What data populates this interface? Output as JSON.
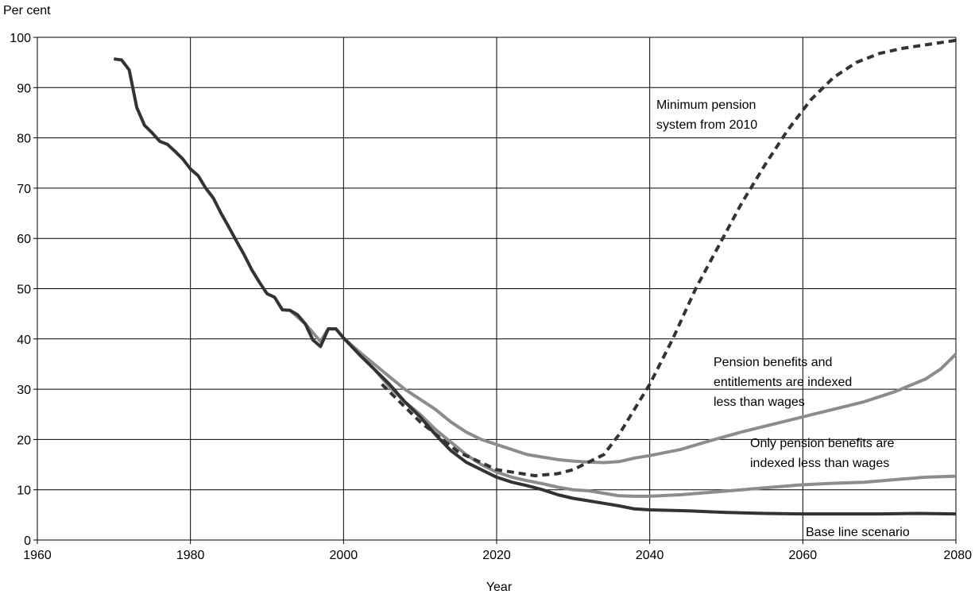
{
  "chart_data": {
    "type": "line",
    "title": "",
    "ylabel": "Per cent",
    "xlabel": "Year",
    "xlim": [
      1960,
      2080
    ],
    "ylim": [
      0,
      100
    ],
    "xticks": [
      1960,
      1980,
      2000,
      2020,
      2040,
      2060,
      2080
    ],
    "yticks": [
      0,
      10,
      20,
      30,
      40,
      50,
      60,
      70,
      80,
      90,
      100
    ],
    "grid": true,
    "colors": {
      "baseline": "#333333",
      "grey": "#8c8c8c",
      "dash": "#333333"
    },
    "series": [
      {
        "name": "Base line scenario",
        "style": "solid-dark",
        "x": [
          1970,
          1971,
          1972,
          1973,
          1974,
          1975,
          1976,
          1977,
          1978,
          1979,
          1980,
          1981,
          1982,
          1983,
          1984,
          1985,
          1986,
          1987,
          1988,
          1989,
          1990,
          1991,
          1992,
          1993,
          1994,
          1995,
          1996,
          1997,
          1998,
          1999,
          2000,
          2002,
          2004,
          2006,
          2008,
          2010,
          2012,
          2014,
          2016,
          2018,
          2020,
          2022,
          2024,
          2026,
          2028,
          2030,
          2032,
          2034,
          2036,
          2038,
          2040,
          2045,
          2050,
          2055,
          2060,
          2065,
          2070,
          2075,
          2080
        ],
        "y": [
          95.7,
          95.5,
          93.5,
          86,
          82.5,
          81,
          79.3,
          78.7,
          77.3,
          75.8,
          73.8,
          72.5,
          70,
          68,
          65,
          62.3,
          59.5,
          56.8,
          53.8,
          51.3,
          49,
          48.3,
          45.8,
          45.7,
          44.8,
          43,
          39.8,
          38.5,
          42,
          42,
          40.2,
          37,
          34,
          31,
          27.5,
          24.5,
          21,
          17.8,
          15.5,
          14,
          12.5,
          11.5,
          10.8,
          10,
          9,
          8.3,
          7.8,
          7.3,
          6.8,
          6.2,
          6,
          5.8,
          5.5,
          5.3,
          5.2,
          5.2,
          5.2,
          5.3,
          5.2
        ]
      },
      {
        "name": "Minimum pension system from 2010",
        "style": "dashed-dark",
        "x": [
          2005,
          2010,
          2015,
          2020,
          2025,
          2028,
          2030,
          2032,
          2034,
          2036,
          2038,
          2040,
          2043,
          2046,
          2049,
          2052,
          2055,
          2058,
          2061,
          2064,
          2067,
          2070,
          2073,
          2076,
          2080
        ],
        "y": [
          31,
          23.5,
          17.5,
          14,
          12.8,
          13.2,
          14,
          15.5,
          17,
          21,
          26,
          31,
          40,
          50,
          58.5,
          67,
          74.5,
          81.5,
          87.5,
          92,
          95,
          96.8,
          97.8,
          98.5,
          99.4
        ]
      },
      {
        "name": "Pension benefits and entitlements are indexed less than wages",
        "style": "solid-grey",
        "x": [
          1993,
          1995,
          1997,
          1998,
          1999,
          2000,
          2002,
          2004,
          2006,
          2008,
          2010,
          2012,
          2014,
          2016,
          2018,
          2020,
          2022,
          2024,
          2026,
          2028,
          2030,
          2032,
          2034,
          2036,
          2038,
          2040,
          2044,
          2048,
          2052,
          2056,
          2060,
          2064,
          2068,
          2072,
          2076,
          2078,
          2080
        ],
        "y": [
          45.7,
          43,
          39.5,
          42,
          42,
          40.2,
          37.5,
          35,
          32.5,
          30,
          28,
          26,
          23.5,
          21.5,
          20,
          19,
          18,
          17,
          16.5,
          16,
          15.7,
          15.5,
          15.4,
          15.6,
          16.3,
          16.8,
          18,
          19.8,
          21.5,
          23,
          24.5,
          26,
          27.5,
          29.5,
          32,
          34,
          37
        ]
      },
      {
        "name": "Only pension benefits are indexed less than wages",
        "style": "solid-grey",
        "x": [
          2000,
          2002,
          2004,
          2006,
          2008,
          2010,
          2012,
          2014,
          2016,
          2018,
          2020,
          2022,
          2024,
          2026,
          2028,
          2030,
          2032,
          2034,
          2036,
          2038,
          2040,
          2044,
          2048,
          2052,
          2056,
          2060,
          2064,
          2068,
          2072,
          2076,
          2080
        ],
        "y": [
          40.2,
          37,
          34,
          30.5,
          27.5,
          25,
          22,
          19.5,
          17,
          15,
          13.5,
          12.5,
          11.8,
          11.2,
          10.5,
          10,
          9.8,
          9.3,
          8.8,
          8.7,
          8.7,
          9,
          9.5,
          10,
          10.5,
          11,
          11.3,
          11.5,
          12,
          12.5,
          12.7
        ]
      }
    ],
    "annotations": {
      "min_pension_line1": "Minimum pension",
      "min_pension_line2": "system from 2010",
      "ent_line1": "Pension benefits and",
      "ent_line2": "entitlements are indexed",
      "ent_line3": "less than wages",
      "only_line1": "Only pension benefits are",
      "only_line2": "indexed less than wages",
      "baseline": "Base line scenario"
    }
  }
}
